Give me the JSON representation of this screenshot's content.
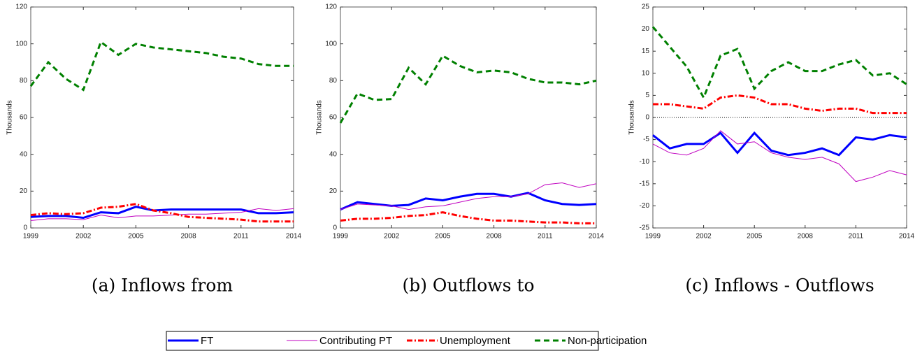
{
  "chart_data": [
    {
      "type": "line",
      "caption": "(a) Inflows from",
      "ylabel": "Thousands",
      "x": [
        1999,
        2000,
        2001,
        2002,
        2003,
        2004,
        2005,
        2006,
        2007,
        2008,
        2009,
        2010,
        2011,
        2012,
        2013,
        2014
      ],
      "xlim": [
        1999,
        2014
      ],
      "xticks": [
        1999,
        2002,
        2005,
        2008,
        2011,
        2014
      ],
      "ylim": [
        0,
        120
      ],
      "yticks": [
        0,
        20,
        40,
        60,
        80,
        100,
        120
      ],
      "series": [
        {
          "values": [
            6,
            6.5,
            6.5,
            5.5,
            8.5,
            8,
            11.5,
            9.5,
            10,
            10,
            10,
            10,
            10,
            8,
            8,
            8.5
          ]
        },
        {
          "values": [
            4,
            5,
            5,
            4.5,
            7,
            5.5,
            6.5,
            6.5,
            7,
            7.5,
            7.5,
            8,
            8.5,
            10.5,
            9.5,
            10.5
          ]
        },
        {
          "values": [
            7,
            8,
            7.5,
            8,
            11,
            11.5,
            13,
            9.5,
            8,
            6,
            5.5,
            5,
            4.5,
            3.5,
            3.5,
            3.5
          ]
        },
        {
          "values": [
            77,
            90,
            81,
            75,
            101,
            94,
            100,
            98,
            97,
            96,
            95,
            93,
            92,
            89,
            88,
            88
          ]
        }
      ]
    },
    {
      "type": "line",
      "caption": "(b) Outflows to",
      "ylabel": "Thousands",
      "x": [
        1999,
        2000,
        2001,
        2002,
        2003,
        2004,
        2005,
        2006,
        2007,
        2008,
        2009,
        2010,
        2011,
        2012,
        2013,
        2014
      ],
      "xlim": [
        1999,
        2014
      ],
      "xticks": [
        1999,
        2002,
        2005,
        2008,
        2011,
        2014
      ],
      "ylim": [
        0,
        120
      ],
      "yticks": [
        0,
        20,
        40,
        60,
        80,
        100,
        120
      ],
      "series": [
        {
          "values": [
            10,
            14,
            13,
            12,
            12.5,
            16,
            15,
            17,
            18.5,
            18.5,
            17,
            19,
            15,
            13,
            12.5,
            13
          ]
        },
        {
          "values": [
            10,
            13,
            12.5,
            12,
            10,
            11.5,
            12,
            14,
            16,
            17,
            17,
            18.5,
            23.5,
            24.5,
            22,
            24
          ]
        },
        {
          "values": [
            4,
            5,
            5,
            5.5,
            6.5,
            7,
            8.5,
            6.5,
            5,
            4,
            4,
            3.5,
            3,
            3,
            2.5,
            2.5
          ]
        },
        {
          "values": [
            57,
            73,
            69.5,
            70,
            87,
            78,
            93.5,
            88,
            84.5,
            85.5,
            84.5,
            81,
            79,
            79,
            78,
            80
          ]
        }
      ]
    },
    {
      "type": "line",
      "caption": "(c) Inflows - Outflows",
      "ylabel": "Thousands",
      "zero_line": true,
      "x": [
        1999,
        2000,
        2001,
        2002,
        2003,
        2004,
        2005,
        2006,
        2007,
        2008,
        2009,
        2010,
        2011,
        2012,
        2013,
        2014
      ],
      "xlim": [
        1999,
        2014
      ],
      "xticks": [
        1999,
        2002,
        2005,
        2008,
        2011,
        2014
      ],
      "ylim": [
        -25,
        25
      ],
      "yticks": [
        -25,
        -20,
        -15,
        -10,
        -5,
        0,
        5,
        10,
        15,
        20,
        25
      ],
      "series": [
        {
          "values": [
            -4,
            -7,
            -6,
            -6,
            -3.5,
            -8,
            -3.5,
            -7.5,
            -8.5,
            -8,
            -7,
            -8.5,
            -4.5,
            -5,
            -4,
            -4.5
          ]
        },
        {
          "values": [
            -6,
            -8,
            -8.5,
            -7,
            -3,
            -6,
            -5.5,
            -8,
            -9,
            -9.5,
            -9,
            -10.5,
            -14.5,
            -13.5,
            -12,
            -13
          ]
        },
        {
          "values": [
            3,
            3,
            2.5,
            2,
            4.5,
            5,
            4.5,
            3,
            3,
            2,
            1.5,
            2,
            2,
            1,
            1,
            1
          ]
        },
        {
          "values": [
            20.5,
            16,
            11.5,
            4.5,
            14,
            15.5,
            6.5,
            10.5,
            12.5,
            10.5,
            10.5,
            12,
            13,
            9.5,
            10,
            7.5
          ]
        }
      ]
    }
  ],
  "legend": [
    {
      "name": "FT",
      "color": "#0000ff",
      "width": 3,
      "dash": "none"
    },
    {
      "name": "Contributing PT",
      "color": "#c000c0",
      "width": 1,
      "dash": "none"
    },
    {
      "name": "Unemployment",
      "color": "#ff0000",
      "width": 3,
      "dash": "8 3 2 3"
    },
    {
      "name": "Non-participation",
      "color": "#008000",
      "width": 3,
      "dash": "8 5"
    }
  ]
}
